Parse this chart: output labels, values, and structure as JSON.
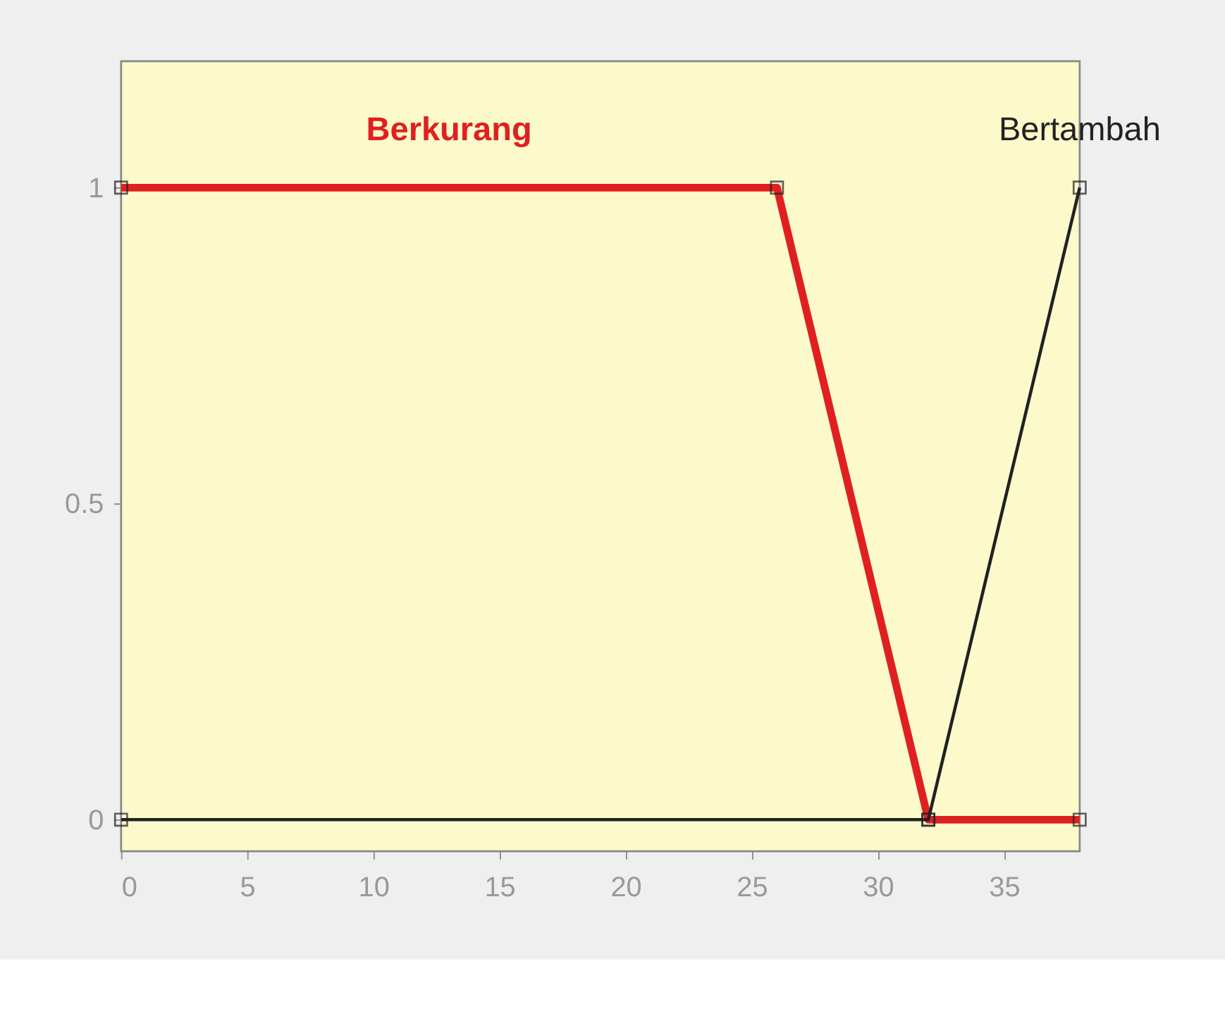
{
  "chart_data": {
    "type": "line",
    "series": [
      {
        "name": "Berkurang",
        "color": "#e02020",
        "x": [
          0,
          26,
          32,
          38
        ],
        "values": [
          1,
          1,
          0,
          0
        ]
      },
      {
        "name": "Bertambah",
        "color": "#222222",
        "x": [
          0,
          32,
          38
        ],
        "values": [
          0,
          0,
          1
        ]
      }
    ],
    "xlim": [
      0,
      38
    ],
    "xticks": [
      0,
      5,
      10,
      15,
      20,
      25,
      30,
      35
    ],
    "ylim": [
      -0.05,
      1.2
    ],
    "yticks": [
      0,
      0.5,
      1
    ],
    "marker": "square",
    "line_style": "solid",
    "grid": false,
    "legend": false
  }
}
